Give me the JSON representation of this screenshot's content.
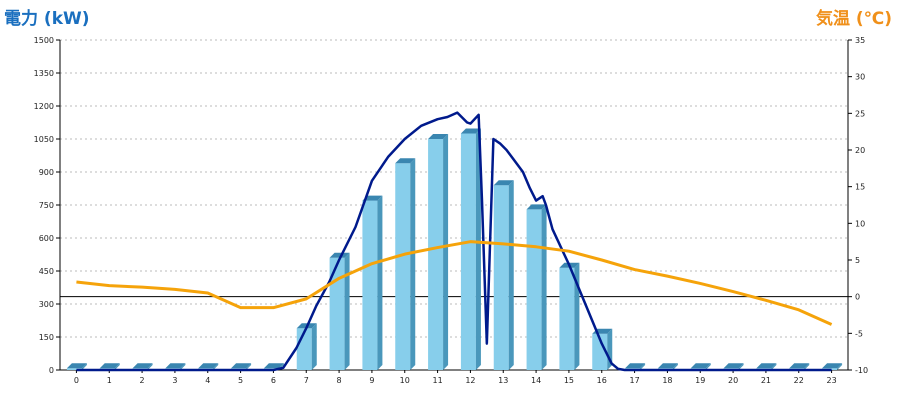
{
  "chart_data": {
    "type": "bar",
    "left_axis_title": "電力 (kW)",
    "right_axis_title": "気温 (℃)",
    "categories": [
      "0",
      "1",
      "2",
      "3",
      "4",
      "5",
      "6",
      "7",
      "8",
      "9",
      "10",
      "11",
      "12",
      "13",
      "14",
      "15",
      "16",
      "17",
      "18",
      "19",
      "20",
      "21",
      "22",
      "23"
    ],
    "y_left": {
      "min": 0,
      "max": 1500,
      "ticks": [
        0,
        150,
        300,
        450,
        600,
        750,
        900,
        1050,
        1200,
        1350,
        1500
      ]
    },
    "y_right": {
      "min": -10,
      "max": 35,
      "ticks": [
        -10,
        -5,
        0,
        5,
        10,
        15,
        20,
        25,
        30,
        35
      ]
    },
    "grid": true,
    "series": [
      {
        "kind": "bar",
        "axis": "left",
        "values": [
          8,
          8,
          8,
          8,
          8,
          8,
          8,
          190,
          510,
          770,
          940,
          1050,
          1075,
          840,
          730,
          465,
          165,
          8,
          8,
          8,
          8,
          8,
          8,
          8
        ]
      },
      {
        "kind": "line",
        "axis": "left",
        "points": [
          [
            0,
            0
          ],
          [
            1,
            0
          ],
          [
            2,
            0
          ],
          [
            3,
            0
          ],
          [
            4,
            0
          ],
          [
            5,
            0
          ],
          [
            6,
            0
          ],
          [
            6.3,
            10
          ],
          [
            6.7,
            100
          ],
          [
            7.0,
            190
          ],
          [
            7.3,
            290
          ],
          [
            7.7,
            400
          ],
          [
            8.0,
            500
          ],
          [
            8.5,
            650
          ],
          [
            9.0,
            860
          ],
          [
            9.5,
            970
          ],
          [
            10.0,
            1050
          ],
          [
            10.5,
            1110
          ],
          [
            11.0,
            1140
          ],
          [
            11.3,
            1150
          ],
          [
            11.6,
            1170
          ],
          [
            11.9,
            1125
          ],
          [
            12.0,
            1120
          ],
          [
            12.25,
            1160
          ],
          [
            12.35,
            780
          ],
          [
            12.5,
            120
          ],
          [
            12.7,
            1050
          ],
          [
            12.9,
            1030
          ],
          [
            13.1,
            1000
          ],
          [
            13.3,
            960
          ],
          [
            13.6,
            900
          ],
          [
            13.8,
            830
          ],
          [
            14.0,
            770
          ],
          [
            14.2,
            790
          ],
          [
            14.3,
            750
          ],
          [
            14.5,
            640
          ],
          [
            15.0,
            480
          ],
          [
            15.5,
            300
          ],
          [
            16.0,
            120
          ],
          [
            16.3,
            30
          ],
          [
            16.5,
            5
          ],
          [
            16.7,
            0
          ],
          [
            17,
            0
          ],
          [
            18,
            0
          ],
          [
            19,
            0
          ],
          [
            20,
            0
          ],
          [
            21,
            0
          ],
          [
            22,
            0
          ],
          [
            23,
            0
          ]
        ],
        "color": "#001a8c"
      },
      {
        "kind": "line",
        "axis": "right",
        "values": [
          2.0,
          1.5,
          1.3,
          1.0,
          0.5,
          -1.5,
          -1.5,
          -0.3,
          2.5,
          4.5,
          5.8,
          6.7,
          7.5,
          7.2,
          6.8,
          6.2,
          5.0,
          3.7,
          2.8,
          1.8,
          0.7,
          -0.5,
          -1.8,
          -3.8
        ],
        "color": "#f5a30a"
      }
    ],
    "colors": {
      "bar_front": "#87ceeb",
      "bar_side": "#4a97bb",
      "bar_top": "#3a86b0",
      "grid": "#bbbbbb",
      "zero_line": "#000000"
    }
  }
}
